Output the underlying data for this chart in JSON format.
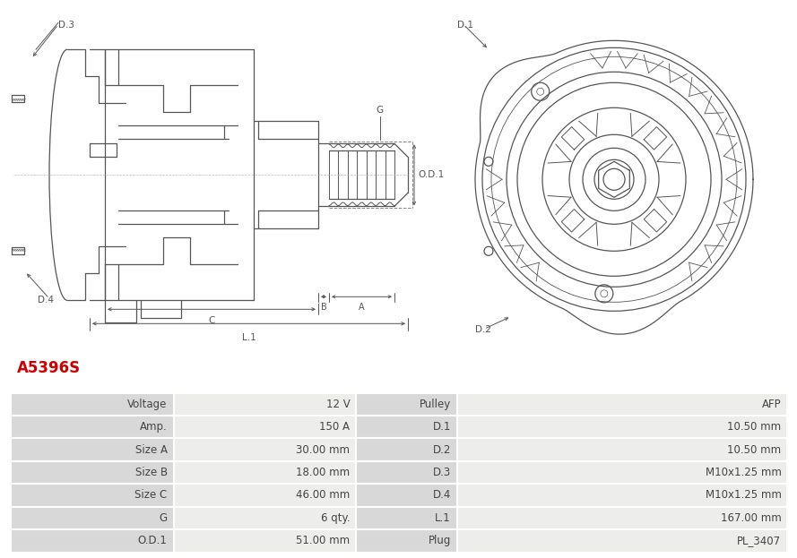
{
  "title": "A5396S",
  "title_color": "#cc0000",
  "bg_color": "#ffffff",
  "line_color": "#555555",
  "dim_color": "#555555",
  "label_bg": "#d8d8d8",
  "value_bg": "#ededeb",
  "border_color": "#ffffff",
  "rows": [
    [
      "Voltage",
      "12 V",
      "Pulley",
      "AFP"
    ],
    [
      "Amp.",
      "150 A",
      "D.1",
      "10.50 mm"
    ],
    [
      "Size A",
      "30.00 mm",
      "D.2",
      "10.50 mm"
    ],
    [
      "Size B",
      "18.00 mm",
      "D.3",
      "M10x1.25 mm"
    ],
    [
      "Size C",
      "46.00 mm",
      "D.4",
      "M10x1.25 mm"
    ],
    [
      "G",
      "6 qty.",
      "L.1",
      "167.00 mm"
    ],
    [
      "O.D.1",
      "51.00 mm",
      "Plug",
      "PL_3407"
    ]
  ]
}
